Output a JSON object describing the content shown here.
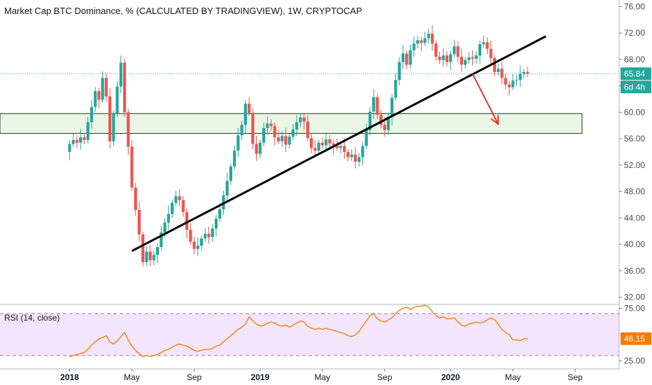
{
  "chart_data": {
    "type": "candlestick",
    "title": "Market Cap BTC Dominance, % (CALCULATED BY TRADINGVIEW), 1W, CRYPTOCAP",
    "y_ticks": [
      "76.00",
      "72.00",
      "68.00",
      "64.00",
      "60.00",
      "56.00",
      "52.00",
      "48.00",
      "44.00",
      "40.00",
      "36.00",
      "32.00"
    ],
    "ylim": [
      31,
      77
    ],
    "x_ticks": [
      {
        "label": "2018",
        "x": 0
      },
      {
        "label": "May",
        "x": 17
      },
      {
        "label": "Sep",
        "x": 34
      },
      {
        "label": "2019",
        "x": 52
      },
      {
        "label": "May",
        "x": 69
      },
      {
        "label": "Sep",
        "x": 86
      },
      {
        "label": "2020",
        "x": 104
      },
      {
        "label": "May",
        "x": 121
      },
      {
        "label": "Sep",
        "x": 138
      }
    ],
    "xlim": [
      -19,
      150
    ],
    "current_price": {
      "value": 65.84,
      "label": "65.84"
    },
    "countdown_label": "6d 4h",
    "support_zone": {
      "low": 56.8,
      "high": 59.8
    },
    "trendline": {
      "from": [
        17,
        39.0
      ],
      "to": [
        130,
        71.5
      ]
    },
    "projection_arrow": {
      "from": [
        110,
        65.8
      ],
      "to": [
        117,
        58.2
      ]
    },
    "candles": [
      {
        "o": 54.0,
        "c": 55.2
      },
      {
        "o": 55.2,
        "c": 55.8
      },
      {
        "o": 55.8,
        "c": 55.4
      },
      {
        "o": 55.4,
        "c": 56.2
      },
      {
        "o": 56.2,
        "c": 55.8
      },
      {
        "o": 55.8,
        "c": 58.5
      },
      {
        "o": 58.5,
        "c": 60.8
      },
      {
        "o": 60.8,
        "c": 63.2
      },
      {
        "o": 63.2,
        "c": 61.9
      },
      {
        "o": 61.9,
        "c": 65.2
      },
      {
        "o": 65.2,
        "c": 62.4
      },
      {
        "o": 62.4,
        "c": 55.6
      },
      {
        "o": 55.6,
        "c": 59.8
      },
      {
        "o": 59.8,
        "c": 63.9
      },
      {
        "o": 63.9,
        "c": 67.5
      },
      {
        "o": 67.5,
        "c": 60.0
      },
      {
        "o": 60.0,
        "c": 54.8
      },
      {
        "o": 54.8,
        "c": 48.6
      },
      {
        "o": 48.6,
        "c": 45.2
      },
      {
        "o": 45.2,
        "c": 41.5
      },
      {
        "o": 41.5,
        "c": 37.3
      },
      {
        "o": 37.3,
        "c": 38.9
      },
      {
        "o": 38.9,
        "c": 37.6
      },
      {
        "o": 37.6,
        "c": 38.4
      },
      {
        "o": 38.4,
        "c": 39.6
      },
      {
        "o": 39.6,
        "c": 41.8
      },
      {
        "o": 41.8,
        "c": 43.3
      },
      {
        "o": 43.3,
        "c": 44.6
      },
      {
        "o": 44.6,
        "c": 46.3
      },
      {
        "o": 46.3,
        "c": 47.3
      },
      {
        "o": 47.3,
        "c": 46.7
      },
      {
        "o": 46.7,
        "c": 44.9
      },
      {
        "o": 44.9,
        "c": 42.2
      },
      {
        "o": 42.2,
        "c": 40.4
      },
      {
        "o": 40.4,
        "c": 39.3
      },
      {
        "o": 39.3,
        "c": 39.8
      },
      {
        "o": 39.8,
        "c": 40.9
      },
      {
        "o": 40.9,
        "c": 41.6
      },
      {
        "o": 41.6,
        "c": 41.1
      },
      {
        "o": 41.1,
        "c": 42.4
      },
      {
        "o": 42.4,
        "c": 43.9
      },
      {
        "o": 43.9,
        "c": 45.3
      },
      {
        "o": 45.3,
        "c": 47.4
      },
      {
        "o": 47.4,
        "c": 49.6
      },
      {
        "o": 49.6,
        "c": 51.8
      },
      {
        "o": 51.8,
        "c": 54.2
      },
      {
        "o": 54.2,
        "c": 56.5
      },
      {
        "o": 56.5,
        "c": 58.1
      },
      {
        "o": 58.1,
        "c": 61.3
      },
      {
        "o": 61.3,
        "c": 59.9
      },
      {
        "o": 59.9,
        "c": 55.2
      },
      {
        "o": 55.2,
        "c": 53.7
      },
      {
        "o": 53.7,
        "c": 55.4
      },
      {
        "o": 55.4,
        "c": 57.6
      },
      {
        "o": 57.6,
        "c": 58.3
      },
      {
        "o": 58.3,
        "c": 57.9
      },
      {
        "o": 57.9,
        "c": 56.2
      },
      {
        "o": 56.2,
        "c": 55.6
      },
      {
        "o": 55.6,
        "c": 56.4
      },
      {
        "o": 56.4,
        "c": 55.1
      },
      {
        "o": 55.1,
        "c": 56.3
      },
      {
        "o": 56.3,
        "c": 57.4
      },
      {
        "o": 57.4,
        "c": 58.5
      },
      {
        "o": 58.5,
        "c": 59.2
      },
      {
        "o": 59.2,
        "c": 58.6
      },
      {
        "o": 58.6,
        "c": 56.1
      },
      {
        "o": 56.1,
        "c": 54.6
      },
      {
        "o": 54.6,
        "c": 54.2
      },
      {
        "o": 54.2,
        "c": 55.4
      },
      {
        "o": 55.4,
        "c": 55.0
      },
      {
        "o": 55.0,
        "c": 55.9
      },
      {
        "o": 55.9,
        "c": 55.3
      },
      {
        "o": 55.3,
        "c": 55.0
      },
      {
        "o": 55.0,
        "c": 54.6
      },
      {
        "o": 54.6,
        "c": 54.9
      },
      {
        "o": 54.9,
        "c": 54.0
      },
      {
        "o": 54.0,
        "c": 53.2
      },
      {
        "o": 53.2,
        "c": 53.6
      },
      {
        "o": 53.6,
        "c": 52.5
      },
      {
        "o": 52.5,
        "c": 53.2
      },
      {
        "o": 53.2,
        "c": 54.9
      },
      {
        "o": 54.9,
        "c": 57.3
      },
      {
        "o": 57.3,
        "c": 60.1
      },
      {
        "o": 60.1,
        "c": 62.3
      },
      {
        "o": 62.3,
        "c": 59.6
      },
      {
        "o": 59.6,
        "c": 58.1
      },
      {
        "o": 58.1,
        "c": 57.3
      },
      {
        "o": 57.3,
        "c": 59.3
      },
      {
        "o": 59.3,
        "c": 62.2
      },
      {
        "o": 62.2,
        "c": 64.9
      },
      {
        "o": 64.9,
        "c": 67.6
      },
      {
        "o": 67.6,
        "c": 68.9
      },
      {
        "o": 68.9,
        "c": 67.2
      },
      {
        "o": 67.2,
        "c": 69.4
      },
      {
        "o": 69.4,
        "c": 70.4
      },
      {
        "o": 70.4,
        "c": 70.9
      },
      {
        "o": 70.9,
        "c": 70.5
      },
      {
        "o": 70.5,
        "c": 71.2
      },
      {
        "o": 71.2,
        "c": 71.9
      },
      {
        "o": 71.9,
        "c": 70.4
      },
      {
        "o": 70.4,
        "c": 68.4
      },
      {
        "o": 68.4,
        "c": 67.9
      },
      {
        "o": 67.9,
        "c": 68.6
      },
      {
        "o": 68.6,
        "c": 67.6
      },
      {
        "o": 67.6,
        "c": 68.8
      },
      {
        "o": 68.8,
        "c": 70.0
      },
      {
        "o": 70.0,
        "c": 68.4
      },
      {
        "o": 68.4,
        "c": 67.2
      },
      {
        "o": 67.2,
        "c": 67.9
      },
      {
        "o": 67.9,
        "c": 68.3
      },
      {
        "o": 68.3,
        "c": 68.1
      },
      {
        "o": 68.1,
        "c": 68.6
      },
      {
        "o": 68.6,
        "c": 70.3
      },
      {
        "o": 70.3,
        "c": 70.6
      },
      {
        "o": 70.6,
        "c": 69.6
      },
      {
        "o": 69.6,
        "c": 68.2
      },
      {
        "o": 68.2,
        "c": 66.1
      },
      {
        "o": 66.1,
        "c": 66.6
      },
      {
        "o": 66.6,
        "c": 65.2
      },
      {
        "o": 65.2,
        "c": 64.2
      },
      {
        "o": 64.2,
        "c": 63.8
      },
      {
        "o": 63.8,
        "c": 64.8
      },
      {
        "o": 64.8,
        "c": 64.9
      },
      {
        "o": 64.9,
        "c": 65.8
      },
      {
        "o": 65.8,
        "c": 66.1
      },
      {
        "o": 66.1,
        "c": 65.84
      }
    ],
    "rsi": {
      "label": "RSI (14, close)",
      "ylim": [
        22,
        78
      ],
      "y_ticks": [
        "75.00",
        "25.00"
      ],
      "band": [
        30,
        70
      ],
      "current_value": "46.15",
      "values": [
        29,
        30,
        31,
        32,
        33,
        36,
        40,
        43,
        46,
        47,
        49,
        43,
        41,
        44,
        48,
        52,
        45,
        39,
        35,
        32,
        29,
        30,
        29,
        30,
        31,
        33,
        35,
        36,
        38,
        40,
        41,
        40,
        39,
        37,
        35,
        34,
        35,
        36,
        36,
        37,
        39,
        40,
        43,
        46,
        49,
        52,
        55,
        57,
        60,
        67,
        63,
        60,
        58,
        59,
        61,
        62,
        61,
        59,
        58,
        59,
        57,
        59,
        61,
        63,
        62,
        58,
        56,
        55,
        56,
        55,
        56,
        55,
        54,
        53,
        52,
        51,
        49,
        48,
        50,
        53,
        58,
        63,
        68,
        70,
        65,
        63,
        62,
        64,
        66,
        70,
        73,
        75,
        76,
        74,
        76,
        77,
        77,
        78,
        76,
        72,
        68,
        66,
        67,
        65,
        65,
        66,
        62,
        59,
        58,
        60,
        61,
        62,
        61,
        62,
        64,
        66,
        64,
        60,
        55,
        52,
        50,
        45,
        45,
        44,
        46,
        46.15
      ]
    }
  }
}
